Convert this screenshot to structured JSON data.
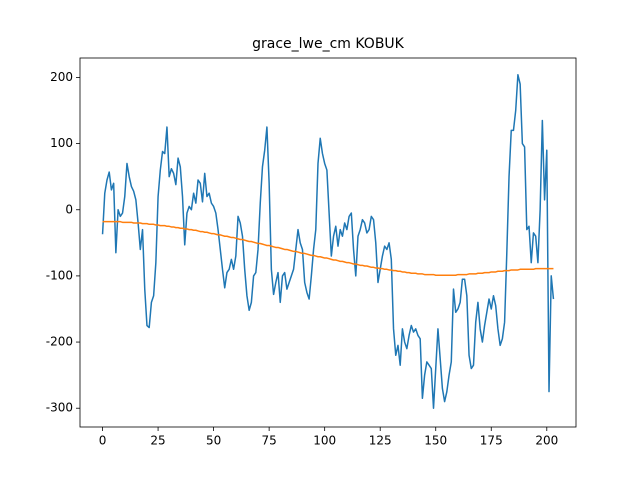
{
  "chart_data": {
    "type": "line",
    "title": "grace_lwe_cm KOBUK",
    "x": [
      0,
      1,
      2,
      3,
      4,
      5,
      6,
      7,
      8,
      9,
      10,
      11,
      12,
      13,
      14,
      15,
      16,
      17,
      18,
      19,
      20,
      21,
      22,
      23,
      24,
      25,
      26,
      27,
      28,
      29,
      30,
      31,
      32,
      33,
      34,
      35,
      36,
      37,
      38,
      39,
      40,
      41,
      42,
      43,
      44,
      45,
      46,
      47,
      48,
      49,
      50,
      51,
      52,
      53,
      54,
      55,
      56,
      57,
      58,
      59,
      60,
      61,
      62,
      63,
      64,
      65,
      66,
      67,
      68,
      69,
      70,
      71,
      72,
      73,
      74,
      75,
      76,
      77,
      78,
      79,
      80,
      81,
      82,
      83,
      84,
      85,
      86,
      87,
      88,
      89,
      90,
      91,
      92,
      93,
      94,
      95,
      96,
      97,
      98,
      99,
      100,
      101,
      102,
      103,
      104,
      105,
      106,
      107,
      108,
      109,
      110,
      111,
      112,
      113,
      114,
      115,
      116,
      117,
      118,
      119,
      120,
      121,
      122,
      123,
      124,
      125,
      126,
      127,
      128,
      129,
      130,
      131,
      132,
      133,
      134,
      135,
      136,
      137,
      138,
      139,
      140,
      141,
      142,
      143,
      144,
      145,
      146,
      147,
      148,
      149,
      150,
      151,
      152,
      153,
      154,
      155,
      156,
      157,
      158,
      159,
      160,
      161,
      162,
      163,
      164,
      165,
      166,
      167,
      168,
      169,
      170,
      171,
      172,
      173,
      174,
      175,
      176,
      177,
      178,
      179,
      180,
      181,
      182,
      183,
      184,
      185,
      186,
      187,
      188,
      189,
      190,
      191,
      192,
      193,
      194,
      195,
      196,
      197,
      198,
      199,
      200,
      201,
      202,
      203
    ],
    "series": [
      {
        "color": "#1f77b4",
        "values": [
          -37,
          25,
          45,
          57,
          30,
          40,
          -65,
          0,
          -10,
          -5,
          20,
          70,
          50,
          35,
          28,
          15,
          -20,
          -60,
          -30,
          -120,
          -175,
          -178,
          -140,
          -130,
          -80,
          20,
          60,
          88,
          85,
          125,
          50,
          62,
          55,
          38,
          78,
          65,
          20,
          -53,
          -5,
          5,
          0,
          25,
          10,
          45,
          40,
          12,
          55,
          20,
          25,
          10,
          5,
          -5,
          -30,
          -60,
          -90,
          -118,
          -95,
          -90,
          -75,
          -90,
          -70,
          -10,
          -20,
          -40,
          -90,
          -130,
          -152,
          -140,
          -100,
          -95,
          -60,
          10,
          65,
          90,
          125,
          40,
          -90,
          -128,
          -110,
          -95,
          -140,
          -100,
          -95,
          -120,
          -110,
          -100,
          -90,
          -60,
          -30,
          -50,
          -60,
          -110,
          -125,
          -135,
          -100,
          -60,
          -30,
          70,
          108,
          85,
          70,
          60,
          -5,
          -70,
          -40,
          -25,
          -55,
          -30,
          -40,
          -20,
          -30,
          -10,
          -5,
          -60,
          -100,
          -40,
          -30,
          -15,
          -20,
          -35,
          -30,
          -10,
          -15,
          -50,
          -110,
          -90,
          -70,
          -55,
          -60,
          -50,
          -75,
          -180,
          -220,
          -205,
          -235,
          -180,
          -200,
          -210,
          -190,
          -175,
          -185,
          -180,
          -190,
          -195,
          -285,
          -250,
          -230,
          -235,
          -240,
          -300,
          -240,
          -180,
          -225,
          -270,
          -290,
          -275,
          -250,
          -230,
          -120,
          -155,
          -150,
          -140,
          -105,
          -105,
          -130,
          -220,
          -240,
          -235,
          -170,
          -140,
          -180,
          -200,
          -175,
          -155,
          -135,
          -150,
          -130,
          -145,
          -180,
          -205,
          -195,
          -170,
          -65,
          50,
          120,
          120,
          150,
          204,
          190,
          100,
          95,
          -30,
          -25,
          -80,
          -35,
          -40,
          -80,
          0,
          135,
          15,
          90,
          -275,
          -100,
          -135
        ]
      },
      {
        "color": "#ff7f0e",
        "values": [
          -18,
          -18,
          -18,
          -18,
          -18,
          -18,
          -18,
          -18,
          -18,
          -19,
          -19,
          -19,
          -19,
          -19,
          -20,
          -20,
          -20,
          -20,
          -21,
          -21,
          -21,
          -22,
          -22,
          -22,
          -23,
          -23,
          -24,
          -24,
          -24,
          -25,
          -25,
          -26,
          -26,
          -27,
          -27,
          -28,
          -28,
          -29,
          -29,
          -30,
          -30,
          -31,
          -31,
          -32,
          -33,
          -33,
          -34,
          -34,
          -35,
          -36,
          -36,
          -37,
          -38,
          -38,
          -39,
          -40,
          -40,
          -41,
          -42,
          -42,
          -43,
          -44,
          -45,
          -45,
          -46,
          -47,
          -48,
          -48,
          -49,
          -50,
          -51,
          -51,
          -52,
          -53,
          -54,
          -54,
          -55,
          -56,
          -57,
          -57,
          -58,
          -59,
          -60,
          -60,
          -61,
          -62,
          -63,
          -63,
          -64,
          -65,
          -66,
          -66,
          -67,
          -68,
          -69,
          -69,
          -70,
          -71,
          -71,
          -72,
          -73,
          -73,
          -74,
          -75,
          -76,
          -76,
          -77,
          -78,
          -78,
          -79,
          -80,
          -80,
          -81,
          -82,
          -82,
          -83,
          -84,
          -84,
          -85,
          -85,
          -86,
          -87,
          -87,
          -88,
          -88,
          -89,
          -89,
          -90,
          -90,
          -91,
          -91,
          -92,
          -92,
          -93,
          -93,
          -94,
          -94,
          -95,
          -95,
          -96,
          -96,
          -96,
          -97,
          -97,
          -97,
          -98,
          -98,
          -98,
          -98,
          -98,
          -99,
          -99,
          -99,
          -99,
          -99,
          -99,
          -99,
          -99,
          -99,
          -99,
          -98,
          -98,
          -98,
          -98,
          -98,
          -97,
          -97,
          -97,
          -97,
          -96,
          -96,
          -96,
          -95,
          -95,
          -95,
          -94,
          -94,
          -94,
          -93,
          -93,
          -93,
          -92,
          -92,
          -92,
          -91,
          -91,
          -91,
          -91,
          -90,
          -90,
          -90,
          -90,
          -90,
          -90,
          -90,
          -89,
          -89,
          -89,
          -89,
          -89,
          -89,
          -89,
          -89,
          -89
        ]
      }
    ],
    "xlim": [
      -10.15,
      213.15
    ],
    "xticks": [
      0,
      25,
      50,
      75,
      100,
      125,
      150,
      175,
      200
    ],
    "ylim": [
      -328.4,
      229.4
    ],
    "yticks": [
      -300,
      -200,
      -100,
      0,
      100,
      200
    ]
  }
}
